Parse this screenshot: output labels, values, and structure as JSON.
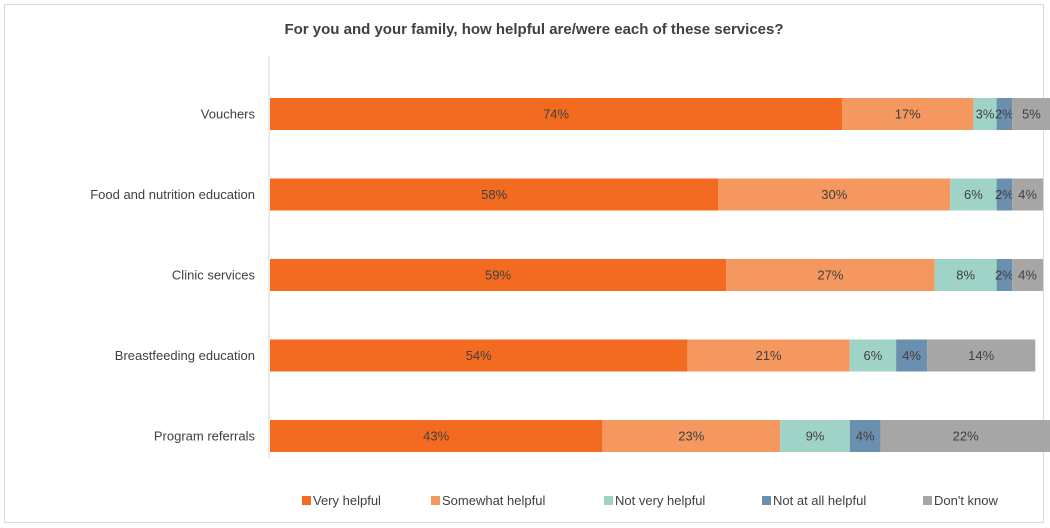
{
  "chart_data": {
    "type": "bar",
    "orientation": "horizontal",
    "stacked": true,
    "title": "For you and your family, how helpful are/were each of these services?",
    "categories": [
      "Vouchers",
      "Food and nutrition education",
      "Clinic services",
      "Breastfeeding education",
      "Program referrals"
    ],
    "series": [
      {
        "name": "Very helpful",
        "color": "#F26B21",
        "values": [
          74,
          58,
          59,
          54,
          43
        ],
        "labels": [
          "74%",
          "58%",
          "59%",
          "54%",
          "43%"
        ]
      },
      {
        "name": "Somewhat helpful",
        "color": "#F5985F",
        "values": [
          17,
          30,
          27,
          21,
          23
        ],
        "labels": [
          "17%",
          "30%",
          "27%",
          "21%",
          "23%"
        ]
      },
      {
        "name": "Not very helpful",
        "color": "#9FD3C7",
        "values": [
          3,
          6,
          8,
          6,
          9
        ],
        "labels": [
          "3%",
          "6%",
          "8%",
          "6%",
          "9%"
        ]
      },
      {
        "name": "Not at all helpful",
        "color": "#6A8FAF",
        "values": [
          2,
          2,
          2,
          4,
          4
        ],
        "labels": [
          "2%",
          "2%",
          "2%",
          "4%",
          "4%"
        ]
      },
      {
        "name": "Don't know",
        "color": "#A6A6A6",
        "values": [
          5,
          4,
          4,
          14,
          22
        ],
        "labels": [
          "5%",
          "4%",
          "4%",
          "14%",
          "22%"
        ]
      }
    ],
    "xlim": [
      0,
      100
    ],
    "grid": false,
    "legend_position": "bottom"
  }
}
